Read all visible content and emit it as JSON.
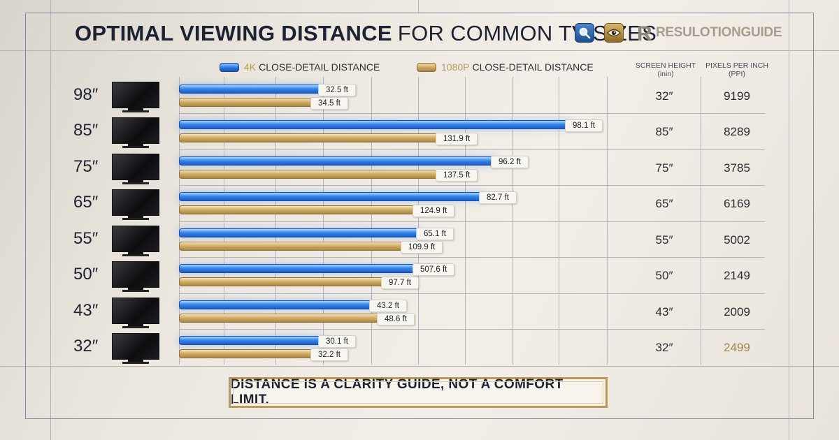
{
  "title_bold": "OPTIMAL VIEWING DISTANCE",
  "title_light": "FOR COMMON TV SIZES",
  "brand": {
    "mark": "R",
    "name": "RESULOTIONGUIDE"
  },
  "icons": [
    "search-icon",
    "eye-icon",
    "tv-icon"
  ],
  "colors": {
    "series_4k": "#2a72d9",
    "series_1080p": "#c9a563",
    "title": "#1d2233",
    "accent_gold": "#b99a5c"
  },
  "legend": [
    {
      "prefix": "4K",
      "label": "CLOSE-DETAIL DISTANCE"
    },
    {
      "prefix": "1080P",
      "label": "CLOSE-DETAIL DISTANCE"
    }
  ],
  "columns": {
    "screen_height_title": "SCREEN HEIGHT",
    "screen_height_unit": "(inin)",
    "ppi_title": "PIXELS PER INCH",
    "ppi_unit": "(PPI)"
  },
  "rows": [
    {
      "size": "98″",
      "k4": "32.5 ft",
      "p1080": "34.5 ft",
      "height": "32″",
      "ppi": "9199"
    },
    {
      "size": "85″",
      "k4": "98.1 ft",
      "p1080": "131.9 ft",
      "height": "85″",
      "ppi": "8289"
    },
    {
      "size": "75″",
      "k4": "96.2 ft",
      "p1080": "137.5 ft",
      "height": "75″",
      "ppi": "3785"
    },
    {
      "size": "65″",
      "k4": "82.7 ft",
      "p1080": "124.9 ft",
      "height": "65″",
      "ppi": "6169"
    },
    {
      "size": "55″",
      "k4": "65.1 ft",
      "p1080": "109.9 ft",
      "height": "55″",
      "ppi": "5002"
    },
    {
      "size": "50″",
      "k4": "507.6 ft",
      "p1080": "97.7 ft",
      "height": "50″",
      "ppi": "2149"
    },
    {
      "size": "43″",
      "k4": "43.2 ft",
      "p1080": "48.6 ft",
      "height": "43″",
      "ppi": "2009"
    },
    {
      "size": "32″",
      "k4": "30.1 ft",
      "p1080": "32.2 ft",
      "height": "32″",
      "ppi": "2499"
    }
  ],
  "footer": "DISTANCE IS A CLARITY GUIDE, NOT A COMFORT LIMIT.",
  "chart_data": {
    "type": "bar",
    "orientation": "horizontal",
    "title": "OPTIMAL VIEWING DISTANCE FOR COMMON TV SIZES",
    "categories": [
      "98″",
      "85″",
      "75″",
      "65″",
      "55″",
      "50″",
      "43″",
      "32″"
    ],
    "series": [
      {
        "name": "4K CLOSE-DETAIL DISTANCE",
        "values": [
          32.5,
          98.1,
          96.2,
          82.7,
          65.1,
          507.6,
          43.2,
          30.1
        ],
        "unit": "ft",
        "drawn_extent": [
          0.37,
          1.0,
          0.81,
          0.78,
          0.62,
          0.61,
          0.5,
          0.37
        ]
      },
      {
        "name": "1080P CLOSE-DETAIL DISTANCE",
        "values": [
          34.5,
          131.9,
          137.5,
          124.9,
          109.9,
          97.7,
          48.6,
          32.2
        ],
        "unit": "ft",
        "drawn_extent": [
          0.35,
          0.67,
          0.67,
          0.61,
          0.58,
          0.53,
          0.52,
          0.35
        ]
      }
    ],
    "drawn_extent_note": "fraction of the longest drawn bar",
    "grid": true,
    "legend_position": "top"
  }
}
